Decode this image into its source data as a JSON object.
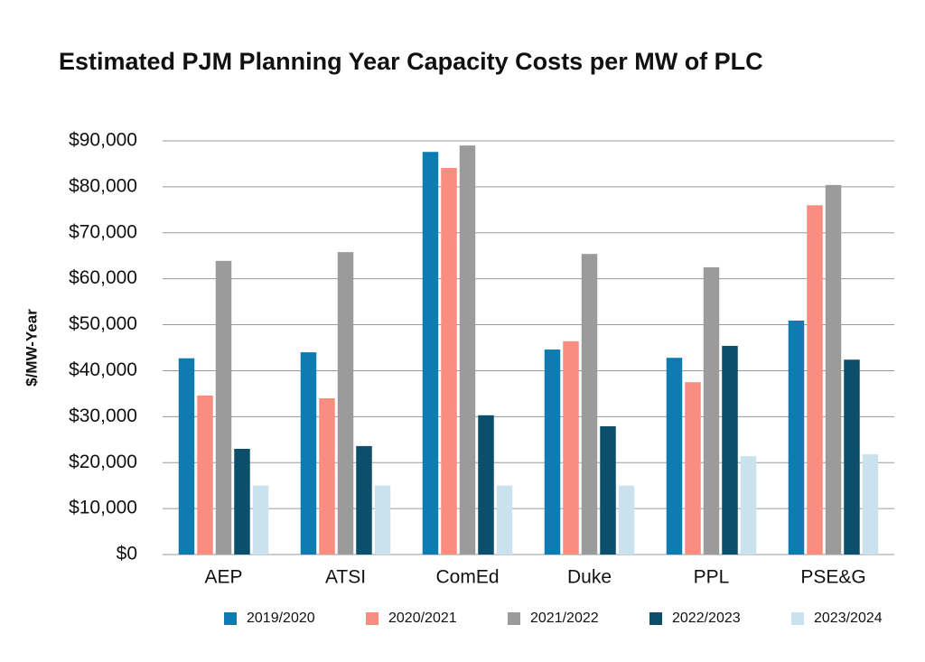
{
  "chart_data": {
    "type": "bar",
    "title": "Estimated PJM Planning Year Capacity Costs per MW of PLC",
    "y_label": "$/MW-Year",
    "categories": [
      "AEP",
      "ATSI",
      "ComEd",
      "Duke",
      "PPL",
      "PSE&G"
    ],
    "series": [
      {
        "name": "2019/2020",
        "color": "#0e7bb1",
        "values": [
          42700,
          44000,
          87600,
          44600,
          42800,
          50900
        ]
      },
      {
        "name": "2020/2021",
        "color": "#fa8c80",
        "values": [
          34600,
          34000,
          84100,
          46400,
          37500,
          76000
        ]
      },
      {
        "name": "2021/2022",
        "color": "#9b9b9b",
        "values": [
          63900,
          65800,
          89000,
          65400,
          62500,
          80400
        ]
      },
      {
        "name": "2022/2023",
        "color": "#0c4f6c",
        "values": [
          23000,
          23600,
          30300,
          27900,
          45400,
          42400
        ]
      },
      {
        "name": "2023/2024",
        "color": "#c9e2ee",
        "values": [
          15000,
          15000,
          15000,
          15000,
          21400,
          21800
        ]
      }
    ],
    "ylim": [
      0,
      90000
    ],
    "yticks": [
      {
        "value": 0,
        "label": "$0"
      },
      {
        "value": 10000,
        "label": "$10,000"
      },
      {
        "value": 20000,
        "label": "$20,000"
      },
      {
        "value": 30000,
        "label": "$30,000"
      },
      {
        "value": 40000,
        "label": "$40,000"
      },
      {
        "value": 50000,
        "label": "$50,000"
      },
      {
        "value": 60000,
        "label": "$60,000"
      },
      {
        "value": 70000,
        "label": "$70,000"
      },
      {
        "value": 80000,
        "label": "$80,000"
      },
      {
        "value": 90000,
        "label": "$90,000"
      }
    ],
    "grid": true,
    "legend": "bottom"
  }
}
